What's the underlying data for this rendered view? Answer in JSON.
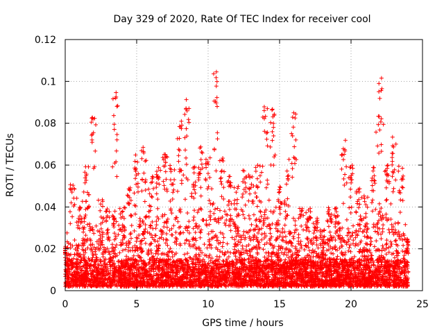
{
  "chart_data": {
    "type": "scatter",
    "title": "Day 329 of 2020, Rate Of TEC Index for receiver cool",
    "xlabel": "GPS time / hours",
    "ylabel": "ROTI / TECUs",
    "xlim": [
      0,
      25
    ],
    "ylim": [
      0,
      0.12
    ],
    "x_ticks": [
      "0",
      "5",
      "10",
      "15",
      "20",
      "25"
    ],
    "y_ticks": [
      "0",
      "0.02",
      "0.04",
      "0.06",
      "0.08",
      "0.1",
      "0.12"
    ],
    "grid": true,
    "marker": "plus",
    "colors": {
      "points": "#ff0000"
    },
    "envelope": {
      "x": [
        0.0,
        0.5,
        1.0,
        1.5,
        2.0,
        2.5,
        3.0,
        3.5,
        4.0,
        4.5,
        5.0,
        5.5,
        6.0,
        6.5,
        7.0,
        7.5,
        8.0,
        8.5,
        9.0,
        9.5,
        10.0,
        10.5,
        11.0,
        11.5,
        12.0,
        12.5,
        13.0,
        13.5,
        14.0,
        14.5,
        15.0,
        15.5,
        16.0,
        16.5,
        17.0,
        17.5,
        18.0,
        18.5,
        19.0,
        19.5,
        20.0,
        20.5,
        21.0,
        21.5,
        22.0,
        22.5,
        23.0,
        23.5,
        24.0
      ],
      "typical_max": [
        0.015,
        0.025,
        0.02,
        0.04,
        0.03,
        0.03,
        0.025,
        0.04,
        0.025,
        0.03,
        0.03,
        0.035,
        0.03,
        0.035,
        0.035,
        0.03,
        0.04,
        0.03,
        0.035,
        0.04,
        0.035,
        0.04,
        0.035,
        0.035,
        0.03,
        0.035,
        0.03,
        0.035,
        0.04,
        0.04,
        0.03,
        0.025,
        0.035,
        0.02,
        0.025,
        0.025,
        0.02,
        0.025,
        0.025,
        0.035,
        0.03,
        0.035,
        0.03,
        0.035,
        0.04,
        0.035,
        0.035,
        0.03,
        0.02
      ],
      "peak_max": [
        0.022,
        0.055,
        0.04,
        0.06,
        0.083,
        0.045,
        0.04,
        0.095,
        0.04,
        0.05,
        0.065,
        0.069,
        0.055,
        0.06,
        0.066,
        0.06,
        0.082,
        0.093,
        0.06,
        0.07,
        0.065,
        0.109,
        0.065,
        0.055,
        0.05,
        0.06,
        0.055,
        0.06,
        0.088,
        0.089,
        0.05,
        0.06,
        0.085,
        0.04,
        0.04,
        0.035,
        0.03,
        0.04,
        0.04,
        0.072,
        0.06,
        0.05,
        0.045,
        0.06,
        0.104,
        0.06,
        0.075,
        0.06,
        0.025
      ],
      "baseline_min": 0.002
    }
  }
}
